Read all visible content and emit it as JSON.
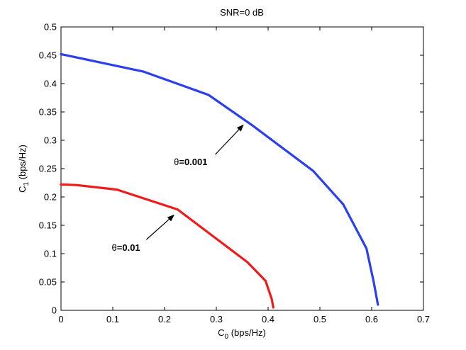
{
  "chart_data": {
    "type": "line",
    "title": "SNR=0 dB",
    "xlabel": {
      "base": "C",
      "sub": "0",
      "rest": " (bps/Hz)"
    },
    "ylabel": {
      "base": "C",
      "sub": "1",
      "rest": " (bps/Hz)"
    },
    "xlim": [
      0,
      0.7
    ],
    "ylim": [
      0,
      0.5
    ],
    "xticks": [
      "0",
      "0.1",
      "0.2",
      "0.3",
      "0.4",
      "0.5",
      "0.6",
      "0.7"
    ],
    "yticks": [
      "0",
      "0.05",
      "0.1",
      "0.15",
      "0.2",
      "0.25",
      "0.3",
      "0.35",
      "0.4",
      "0.45",
      "0.5"
    ],
    "grid": false,
    "series": [
      {
        "color": "#2b3ef0",
        "x": [
          0,
          0.16,
          0.285,
          0.37,
          0.487,
          0.545,
          0.59,
          0.604,
          0.612
        ],
        "y": [
          0.452,
          0.421,
          0.38,
          0.326,
          0.246,
          0.187,
          0.109,
          0.05,
          0.01
        ]
      },
      {
        "color": "#f01a1a",
        "x": [
          0,
          0.03,
          0.108,
          0.225,
          0.36,
          0.395,
          0.407,
          0.41
        ],
        "y": [
          0.222,
          0.221,
          0.213,
          0.178,
          0.085,
          0.052,
          0.02,
          0.005
        ]
      }
    ],
    "annotations": [
      {
        "prefix": "θ",
        "value": "=0.001",
        "text_at": [
          0.218,
          0.256
        ],
        "arrow_from": [
          0.298,
          0.275
        ],
        "arrow_to": [
          0.352,
          0.327
        ]
      },
      {
        "prefix": "θ",
        "value": "=0.01",
        "text_at": [
          0.098,
          0.105
        ],
        "arrow_from": [
          0.165,
          0.125
        ],
        "arrow_to": [
          0.218,
          0.168
        ]
      }
    ]
  }
}
